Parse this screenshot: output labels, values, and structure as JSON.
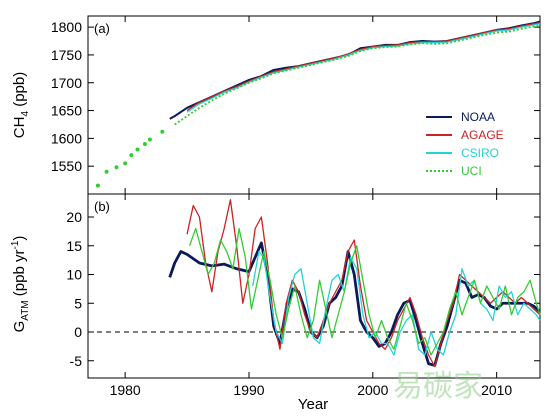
{
  "chart_data": [
    {
      "type": "line",
      "panel_label": "(a)",
      "ylabel": "CH4 (ppb)",
      "ylabel_main": "CH",
      "ylabel_sub": "4",
      "ylabel_unit": " (ppb)",
      "xlim": [
        1977,
        2013.5
      ],
      "ylim": [
        1500,
        1820
      ],
      "yticks": [
        1550,
        1600,
        1650,
        1700,
        1750,
        1800
      ],
      "legend": {
        "placement": "right",
        "entries": [
          {
            "name": "NOAA",
            "color": "#0a1a5c",
            "style": "solid"
          },
          {
            "name": "AGAGE",
            "color": "#cc2222",
            "style": "solid"
          },
          {
            "name": "CSIRO",
            "color": "#22d4d4",
            "style": "solid"
          },
          {
            "name": "UCI",
            "color": "#33cc33",
            "style": "dotted"
          }
        ]
      },
      "series": [
        {
          "name": "NOAA",
          "x": [
            1983.6,
            1984,
            1985,
            1986,
            1987,
            1988,
            1989,
            1990,
            1991,
            1992,
            1993,
            1994,
            1995,
            1996,
            1997,
            1998,
            1999,
            2000,
            2001,
            2002,
            2003,
            2004,
            2005,
            2006,
            2007,
            2008,
            2009,
            2010,
            2011,
            2012,
            2013,
            2013.5
          ],
          "y": [
            1635,
            1640,
            1655,
            1665,
            1675,
            1685,
            1695,
            1705,
            1712,
            1723,
            1727,
            1730,
            1735,
            1740,
            1745,
            1750,
            1762,
            1765,
            1768,
            1768,
            1773,
            1775,
            1774,
            1775,
            1780,
            1785,
            1790,
            1795,
            1798,
            1803,
            1807,
            1810
          ]
        },
        {
          "name": "AGAGE",
          "x": [
            1985,
            1986,
            1987,
            1988,
            1989,
            1990,
            1991,
            1992,
            1993,
            1994,
            1995,
            1996,
            1997,
            1998,
            1999,
            2000,
            2001,
            2002,
            2003,
            2004,
            2005,
            2006,
            2007,
            2008,
            2009,
            2010,
            2011,
            2012,
            2013,
            2013.5
          ],
          "y": [
            1650,
            1665,
            1675,
            1685,
            1693,
            1703,
            1712,
            1720,
            1725,
            1730,
            1735,
            1740,
            1745,
            1752,
            1760,
            1765,
            1767,
            1768,
            1772,
            1774,
            1774,
            1775,
            1780,
            1785,
            1790,
            1795,
            1797,
            1802,
            1806,
            1808
          ]
        },
        {
          "name": "CSIRO",
          "x": [
            1985,
            1986,
            1987,
            1988,
            1989,
            1990,
            1991,
            1992,
            1993,
            1994,
            1995,
            1996,
            1997,
            1998,
            1999,
            2000,
            2001,
            2002,
            2003,
            2004,
            2005,
            2006,
            2007,
            2008,
            2009,
            2010,
            2011,
            2012,
            2013,
            2013.5
          ],
          "y": [
            1647,
            1662,
            1672,
            1683,
            1691,
            1701,
            1710,
            1718,
            1723,
            1728,
            1733,
            1738,
            1743,
            1750,
            1758,
            1763,
            1765,
            1766,
            1770,
            1772,
            1772,
            1773,
            1778,
            1783,
            1788,
            1793,
            1795,
            1800,
            1804,
            1806
          ]
        },
        {
          "name": "UCI",
          "x": [
            1977.8,
            1978.5,
            1979.3,
            1980,
            1980.5,
            1981,
            1981.6,
            1982,
            1983,
            1984,
            1985,
            1986,
            1987,
            1988,
            1989,
            1990,
            1991,
            1992,
            1993,
            1994,
            1995,
            1996,
            1997,
            1998,
            1999,
            2000,
            2001,
            2002,
            2003,
            2004,
            2005,
            2006,
            2007,
            2008,
            2009,
            2010,
            2011,
            2012,
            2013,
            2013.5
          ],
          "y": [
            1515,
            1540,
            1548,
            1555,
            1570,
            1580,
            1590,
            1598,
            1612,
            1625,
            1640,
            1655,
            1668,
            1680,
            1690,
            1700,
            1708,
            1717,
            1722,
            1727,
            1732,
            1737,
            1742,
            1748,
            1757,
            1762,
            1764,
            1765,
            1769,
            1771,
            1770,
            1771,
            1776,
            1781,
            1786,
            1790,
            1792,
            1797,
            1801,
            1803
          ]
        }
      ]
    },
    {
      "type": "line",
      "panel_label": "(b)",
      "ylabel": "GATM (ppb yr-1)",
      "ylabel_main": "G",
      "ylabel_sub": "ATM",
      "ylabel_unit_pre": " (ppb yr",
      "ylabel_sup": "-1",
      "ylabel_unit_post": ")",
      "xlabel": "Year",
      "xlim": [
        1977,
        2013.5
      ],
      "ylim": [
        -8,
        24
      ],
      "yticks": [
        -5,
        0,
        5,
        10,
        15,
        20
      ],
      "xticks": [
        1980,
        1990,
        2000,
        2010
      ],
      "zero_line": "dashed",
      "series": [
        {
          "name": "NOAA",
          "x": [
            1983.6,
            1984,
            1984.5,
            1985,
            1986,
            1987,
            1988,
            1989,
            1990,
            1990.5,
            1991,
            1991.5,
            1992,
            1992.5,
            1993,
            1993.5,
            1994,
            1994.5,
            1995,
            1995.5,
            1996,
            1996.5,
            1997,
            1997.5,
            1998,
            1998.5,
            1999,
            1999.5,
            2000,
            2000.5,
            2001,
            2001.5,
            2002,
            2002.5,
            2003,
            2003.5,
            2004,
            2004.5,
            2005,
            2005.5,
            2006,
            2006.5,
            2007,
            2007.5,
            2008,
            2008.5,
            2009,
            2009.5,
            2010,
            2010.5,
            2011,
            2011.5,
            2012,
            2012.5,
            2013,
            2013.5
          ],
          "y": [
            9.5,
            12,
            14,
            13.5,
            12,
            11.5,
            11.8,
            11,
            10.5,
            13,
            15.5,
            10,
            1,
            -2,
            4,
            7.5,
            7,
            4,
            0,
            -1,
            1,
            5,
            6,
            8,
            14,
            10,
            2,
            0,
            -1,
            -2.5,
            -2,
            0,
            3,
            5,
            5.5,
            2,
            -2,
            -5.5,
            -5.8,
            -2,
            1,
            5,
            9,
            8.5,
            6,
            6.5,
            6,
            4.5,
            4,
            5,
            5,
            5,
            5,
            5,
            4.5,
            3.5
          ]
        },
        {
          "name": "AGAGE",
          "x": [
            1985,
            1985.5,
            1986,
            1986.5,
            1987,
            1987.5,
            1988,
            1988.5,
            1989,
            1989.5,
            1990,
            1990.5,
            1991,
            1991.5,
            1992,
            1992.5,
            1993,
            1993.5,
            1994,
            1994.5,
            1995,
            1995.5,
            1996,
            1996.5,
            1997,
            1997.5,
            1998,
            1998.5,
            1999,
            1999.5,
            2000,
            2000.5,
            2001,
            2001.5,
            2002,
            2002.5,
            2003,
            2003.5,
            2004,
            2004.5,
            2005,
            2005.5,
            2006,
            2006.5,
            2007,
            2007.5,
            2008,
            2008.5,
            2009,
            2009.5,
            2010,
            2010.5,
            2011,
            2011.5,
            2012,
            2012.5,
            2013,
            2013.5
          ],
          "y": [
            17,
            22,
            20,
            12,
            7,
            14,
            18,
            23,
            15,
            5,
            10,
            18,
            20,
            12,
            2,
            -3,
            5,
            9,
            7,
            3,
            0,
            -1,
            2,
            5,
            7,
            9,
            14,
            16,
            8,
            2,
            0,
            -2,
            -3,
            -1,
            2,
            4,
            6,
            3,
            -1,
            -4,
            -6,
            -2,
            2,
            5,
            10,
            9,
            8,
            7,
            6,
            5,
            6,
            7,
            6,
            5,
            6,
            5,
            4,
            3
          ]
        },
        {
          "name": "CSIRO",
          "x": [
            1990.3,
            1990.8,
            1991.2,
            1991.7,
            1992.2,
            1992.7,
            1993.2,
            1993.7,
            1994.2,
            1994.7,
            1995.2,
            1995.7,
            1996.2,
            1996.7,
            1997.2,
            1997.7,
            1998.2,
            1998.7,
            1999.2,
            1999.7,
            2000.2,
            2000.7,
            2001.2,
            2001.7,
            2002.2,
            2002.7,
            2003.2,
            2003.7,
            2004.2,
            2004.7,
            2005.2,
            2005.7,
            2006.2,
            2006.7,
            2007.2,
            2007.7,
            2008.2,
            2008.7,
            2009.2,
            2009.7,
            2010.2,
            2010.7,
            2011.2,
            2011.7,
            2012.2,
            2012.7,
            2013.2,
            2013.5
          ],
          "y": [
            8,
            14,
            13,
            6,
            0,
            -2,
            6,
            10,
            11,
            5,
            -1,
            -2,
            4,
            9,
            10,
            7,
            13,
            11,
            3,
            -1,
            0,
            -2,
            -2,
            -4,
            0,
            2,
            3,
            -3,
            -4,
            0,
            -3,
            -4,
            0,
            3,
            11,
            8,
            9,
            5,
            4,
            2,
            8,
            6,
            7,
            3,
            5,
            4,
            3,
            2
          ]
        },
        {
          "name": "UCI",
          "x": [
            1985.2,
            1985.7,
            1986.2,
            1986.7,
            1987.2,
            1987.7,
            1988.2,
            1988.7,
            1989.2,
            1989.7,
            1990.2,
            1990.7,
            1991.2,
            1991.7,
            1992.2,
            1992.7,
            1993.2,
            1993.7,
            1994.2,
            1994.7,
            1995.2,
            1995.7,
            1996.2,
            1996.7,
            1997.2,
            1997.7,
            1998.2,
            1998.7,
            1999.2,
            1999.7,
            2000.2,
            2000.7,
            2001.2,
            2001.7,
            2002.2,
            2002.7,
            2003.2,
            2003.7,
            2004.2,
            2004.7,
            2005.2,
            2005.7,
            2006.2,
            2006.7,
            2007.2,
            2007.7,
            2008.2,
            2008.7,
            2009.2,
            2009.7,
            2010.2,
            2010.7,
            2011.2,
            2011.7,
            2012.2,
            2012.7,
            2013.2,
            2013.5
          ],
          "y": [
            15,
            18,
            14,
            10,
            12,
            16,
            14,
            11,
            18,
            13,
            4,
            9,
            14,
            9,
            3,
            -1,
            4,
            8,
            3,
            -1,
            2,
            9,
            4,
            -1,
            3,
            7,
            12,
            15,
            9,
            3,
            -1,
            2,
            -1,
            -3,
            1,
            5,
            2,
            -2,
            -1,
            -4,
            -2,
            0,
            4,
            7,
            3,
            6,
            9,
            5,
            8,
            6,
            4,
            8,
            3,
            6,
            7,
            9,
            5,
            3
          ]
        }
      ]
    }
  ],
  "watermark": "易碳家"
}
